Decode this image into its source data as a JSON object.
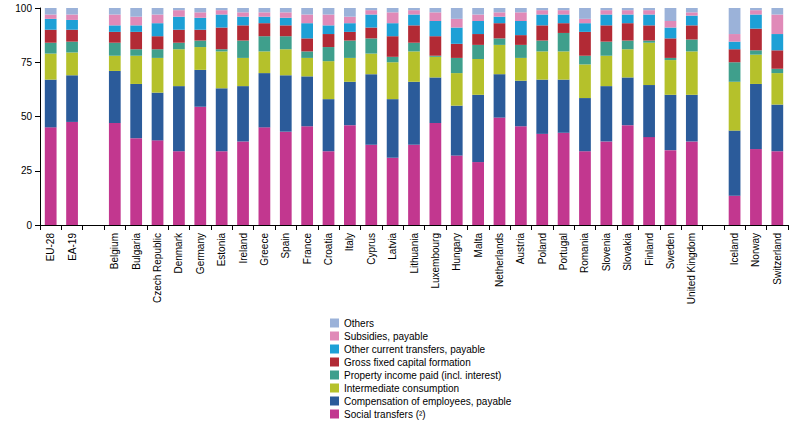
{
  "chart_data": {
    "type": "bar",
    "stacked": true,
    "grid": false,
    "legend": "bottom",
    "categories": [
      "EU-28",
      "EA-19",
      null,
      "Belgium",
      "Bulgaria",
      "Czech Republic",
      "Denmark",
      "Germany",
      "Estonia",
      "Ireland",
      "Greece",
      "Spain",
      "France",
      "Croatia",
      "Italy",
      "Cyprus",
      "Latvia",
      "Lithuania",
      "Luxembourg",
      "Hungary",
      "Malta",
      "Netherlands",
      "Austria",
      "Poland",
      "Portugal",
      "Romania",
      "Slovenia",
      "Slovakia",
      "Finland",
      "Sweden",
      "United Kingdom",
      null,
      "Iceland",
      "Norway",
      "Switzerland"
    ],
    "ylim": [
      0,
      100
    ],
    "yticks": [
      0,
      25,
      50,
      75,
      100
    ],
    "series": [
      {
        "name": "Social transfers (²)",
        "color": "#c2378f",
        "values": [
          45,
          47.5,
          null,
          47,
          40,
          39,
          34,
          54.5,
          34,
          38.5,
          45,
          43,
          45.5,
          34,
          46,
          37,
          31,
          37,
          47,
          32,
          29,
          49.5,
          45.5,
          42,
          42.5,
          34,
          38.5,
          46,
          40.5,
          34.5,
          38.5,
          null,
          13.5,
          35,
          34
        ]
      },
      {
        "name": "Compensation of employees, payable",
        "color": "#2b5b9a",
        "values": [
          22,
          21.5,
          null,
          24,
          25,
          22,
          30,
          17,
          29,
          25.5,
          25,
          26,
          23,
          24,
          20,
          32.5,
          27,
          29,
          21,
          23,
          31,
          20,
          21,
          25,
          24.5,
          24.5,
          25.5,
          22,
          24,
          25.5,
          21.5,
          null,
          30,
          30,
          21.5
        ]
      },
      {
        "name": "Intermediate consumption",
        "color": "#b5c12b",
        "values": [
          12,
          10.5,
          null,
          7,
          13,
          16,
          17,
          10.5,
          17,
          13,
          10,
          12,
          8.5,
          17.5,
          11,
          9.5,
          17,
          14,
          9.5,
          15,
          16.5,
          13.5,
          10.5,
          13,
          13,
          15.5,
          14,
          13,
          19.5,
          16,
          20,
          null,
          22.5,
          13.5,
          14.5
        ]
      },
      {
        "name": "Property income paid (incl. interest)",
        "color": "#3f9f8c",
        "values": [
          5,
          5,
          null,
          6,
          3,
          4,
          3,
          3,
          1,
          8,
          7,
          6,
          3,
          6.5,
          8,
          7,
          2.5,
          4,
          0.5,
          7,
          6.5,
          3,
          6,
          5,
          8.5,
          4,
          6.5,
          4,
          1,
          1,
          5.5,
          null,
          9,
          2,
          2
        ]
      },
      {
        "name": "Gross fixed capital formation",
        "color": "#b22a35",
        "values": [
          6,
          5.5,
          null,
          5,
          8,
          6,
          6,
          5,
          10,
          7,
          6,
          5,
          6,
          6,
          4,
          5,
          9.5,
          8,
          9,
          6.5,
          5,
          7,
          4.5,
          7,
          4.5,
          11,
          7.5,
          8,
          7,
          9,
          6.5,
          null,
          6,
          10,
          8.5
        ]
      },
      {
        "name": "Other current transfers, payable",
        "color": "#1da0d6",
        "values": [
          5,
          4.5,
          null,
          3,
          3,
          6,
          6,
          5.5,
          6,
          4,
          3,
          3.5,
          7,
          4,
          4,
          6,
          6,
          5,
          7,
          7.5,
          6,
          3,
          6.5,
          5,
          4,
          4,
          5,
          4,
          5,
          5,
          4.5,
          null,
          3.5,
          6.5,
          7.5
        ]
      },
      {
        "name": "Subsidies, payable",
        "color": "#e08ab8",
        "values": [
          2,
          2.5,
          null,
          5,
          4,
          4,
          3,
          2.5,
          2,
          2,
          2,
          2.5,
          4,
          5,
          3,
          2,
          5,
          2,
          4,
          4,
          3,
          2,
          4,
          2,
          2,
          2,
          2,
          2,
          2,
          3,
          1.5,
          null,
          3.5,
          2,
          9
        ]
      },
      {
        "name": "Others",
        "color": "#9bb2d9",
        "values": [
          3,
          3,
          null,
          3,
          4,
          3,
          1,
          2,
          1,
          2,
          2,
          2,
          3,
          3,
          4,
          1,
          2,
          1,
          2,
          5,
          3,
          2,
          2,
          1,
          1,
          5,
          1,
          1,
          1,
          6,
          2,
          null,
          12,
          1,
          3
        ]
      }
    ]
  }
}
